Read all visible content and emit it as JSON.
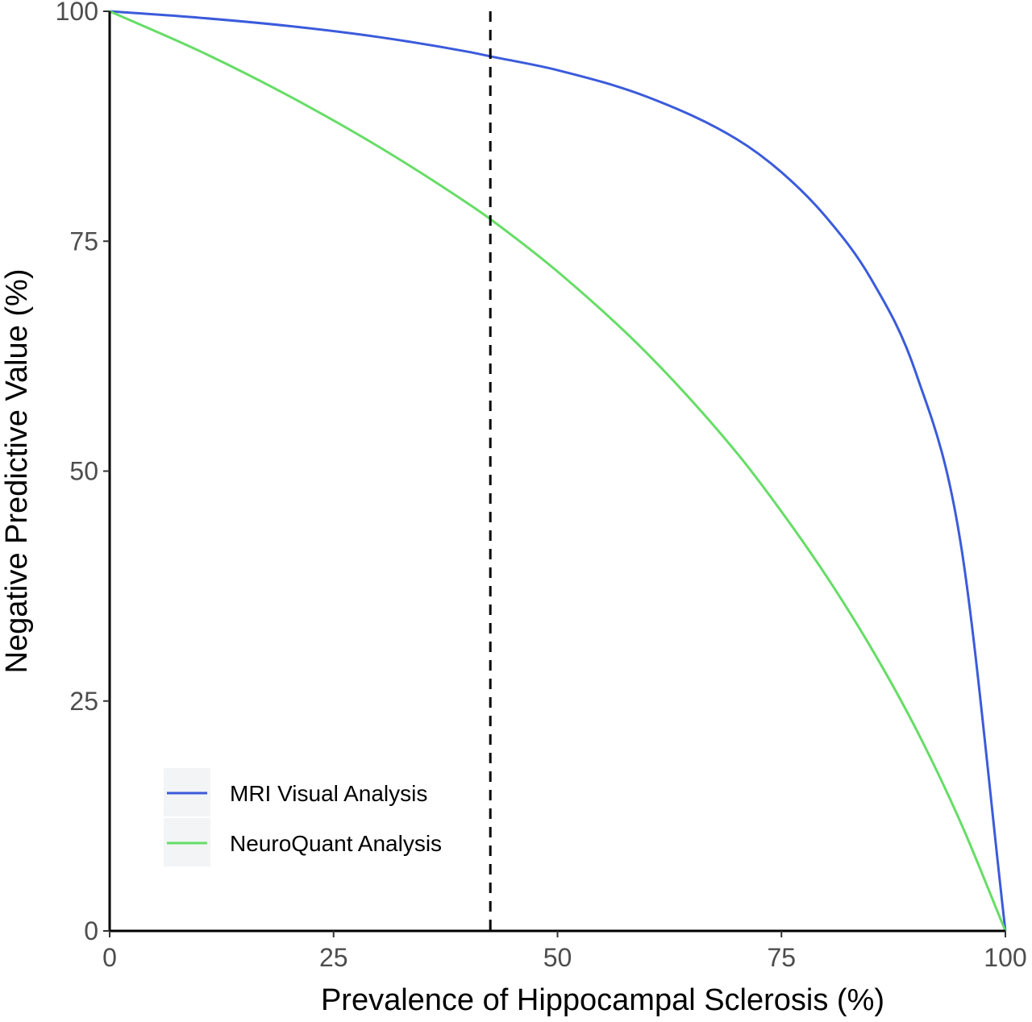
{
  "chart_data": {
    "type": "line",
    "title": "",
    "xlabel": "Prevalence of Hippocampal Sclerosis (%)",
    "ylabel": "Negative Predictive Value (%)",
    "xlim": [
      0,
      100
    ],
    "ylim": [
      0,
      100
    ],
    "x_ticks": [
      "0",
      "25",
      "50",
      "75",
      "100"
    ],
    "y_ticks": [
      "0",
      "25",
      "50",
      "75",
      "100"
    ],
    "grid": false,
    "legend_position": "bottom-left",
    "reference_line": {
      "orientation": "vertical",
      "x": 42.5,
      "style": "dashed",
      "color": "#000000"
    },
    "x": [
      0,
      10,
      20,
      30,
      40,
      42.5,
      50,
      60,
      70,
      75,
      80,
      85,
      90,
      95,
      100
    ],
    "series": [
      {
        "name": "MRI Visual Analysis",
        "color": "#3b5bdb",
        "values": [
          100,
          99.3,
          98.4,
          97.2,
          95.6,
          95.1,
          93.6,
          90.7,
          86.1,
          82.5,
          77.6,
          70.9,
          60.7,
          42.2,
          0
        ]
      },
      {
        "name": "NeuroQuant Analysis",
        "color": "#66dd66",
        "values": [
          100,
          95.7,
          90.8,
          85.3,
          79.1,
          77.4,
          71.7,
          62.8,
          52.0,
          45.6,
          38.6,
          30.8,
          22.0,
          11.8,
          0
        ]
      }
    ]
  }
}
